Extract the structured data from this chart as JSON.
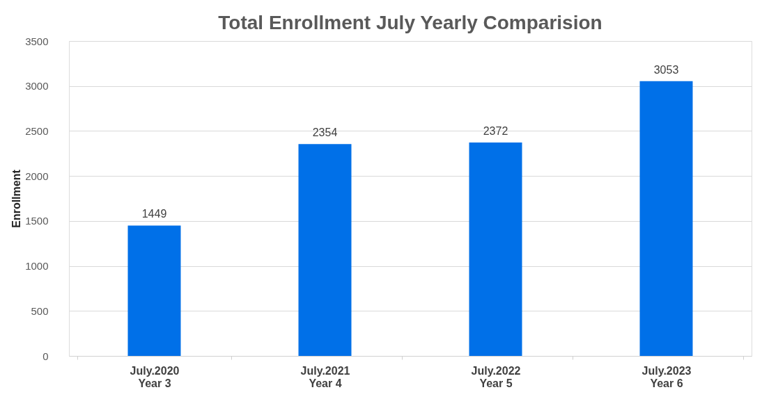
{
  "chart_data": {
    "type": "bar",
    "title": "Total Enrollment July Yearly Comparision",
    "ylabel": "Enrollment",
    "categories": [
      "July.2020\nYear 3",
      "July.2021\nYear 4",
      "July.2022\nYear 5",
      "July.2023\nYear 6"
    ],
    "values": [
      1449,
      2354,
      2372,
      3053
    ],
    "color": "#0070e8",
    "ylim": [
      0,
      3500
    ],
    "yticks": [
      0,
      500,
      1000,
      1500,
      2000,
      2500,
      3000,
      3500
    ],
    "grid": "y",
    "data_labels": true
  }
}
